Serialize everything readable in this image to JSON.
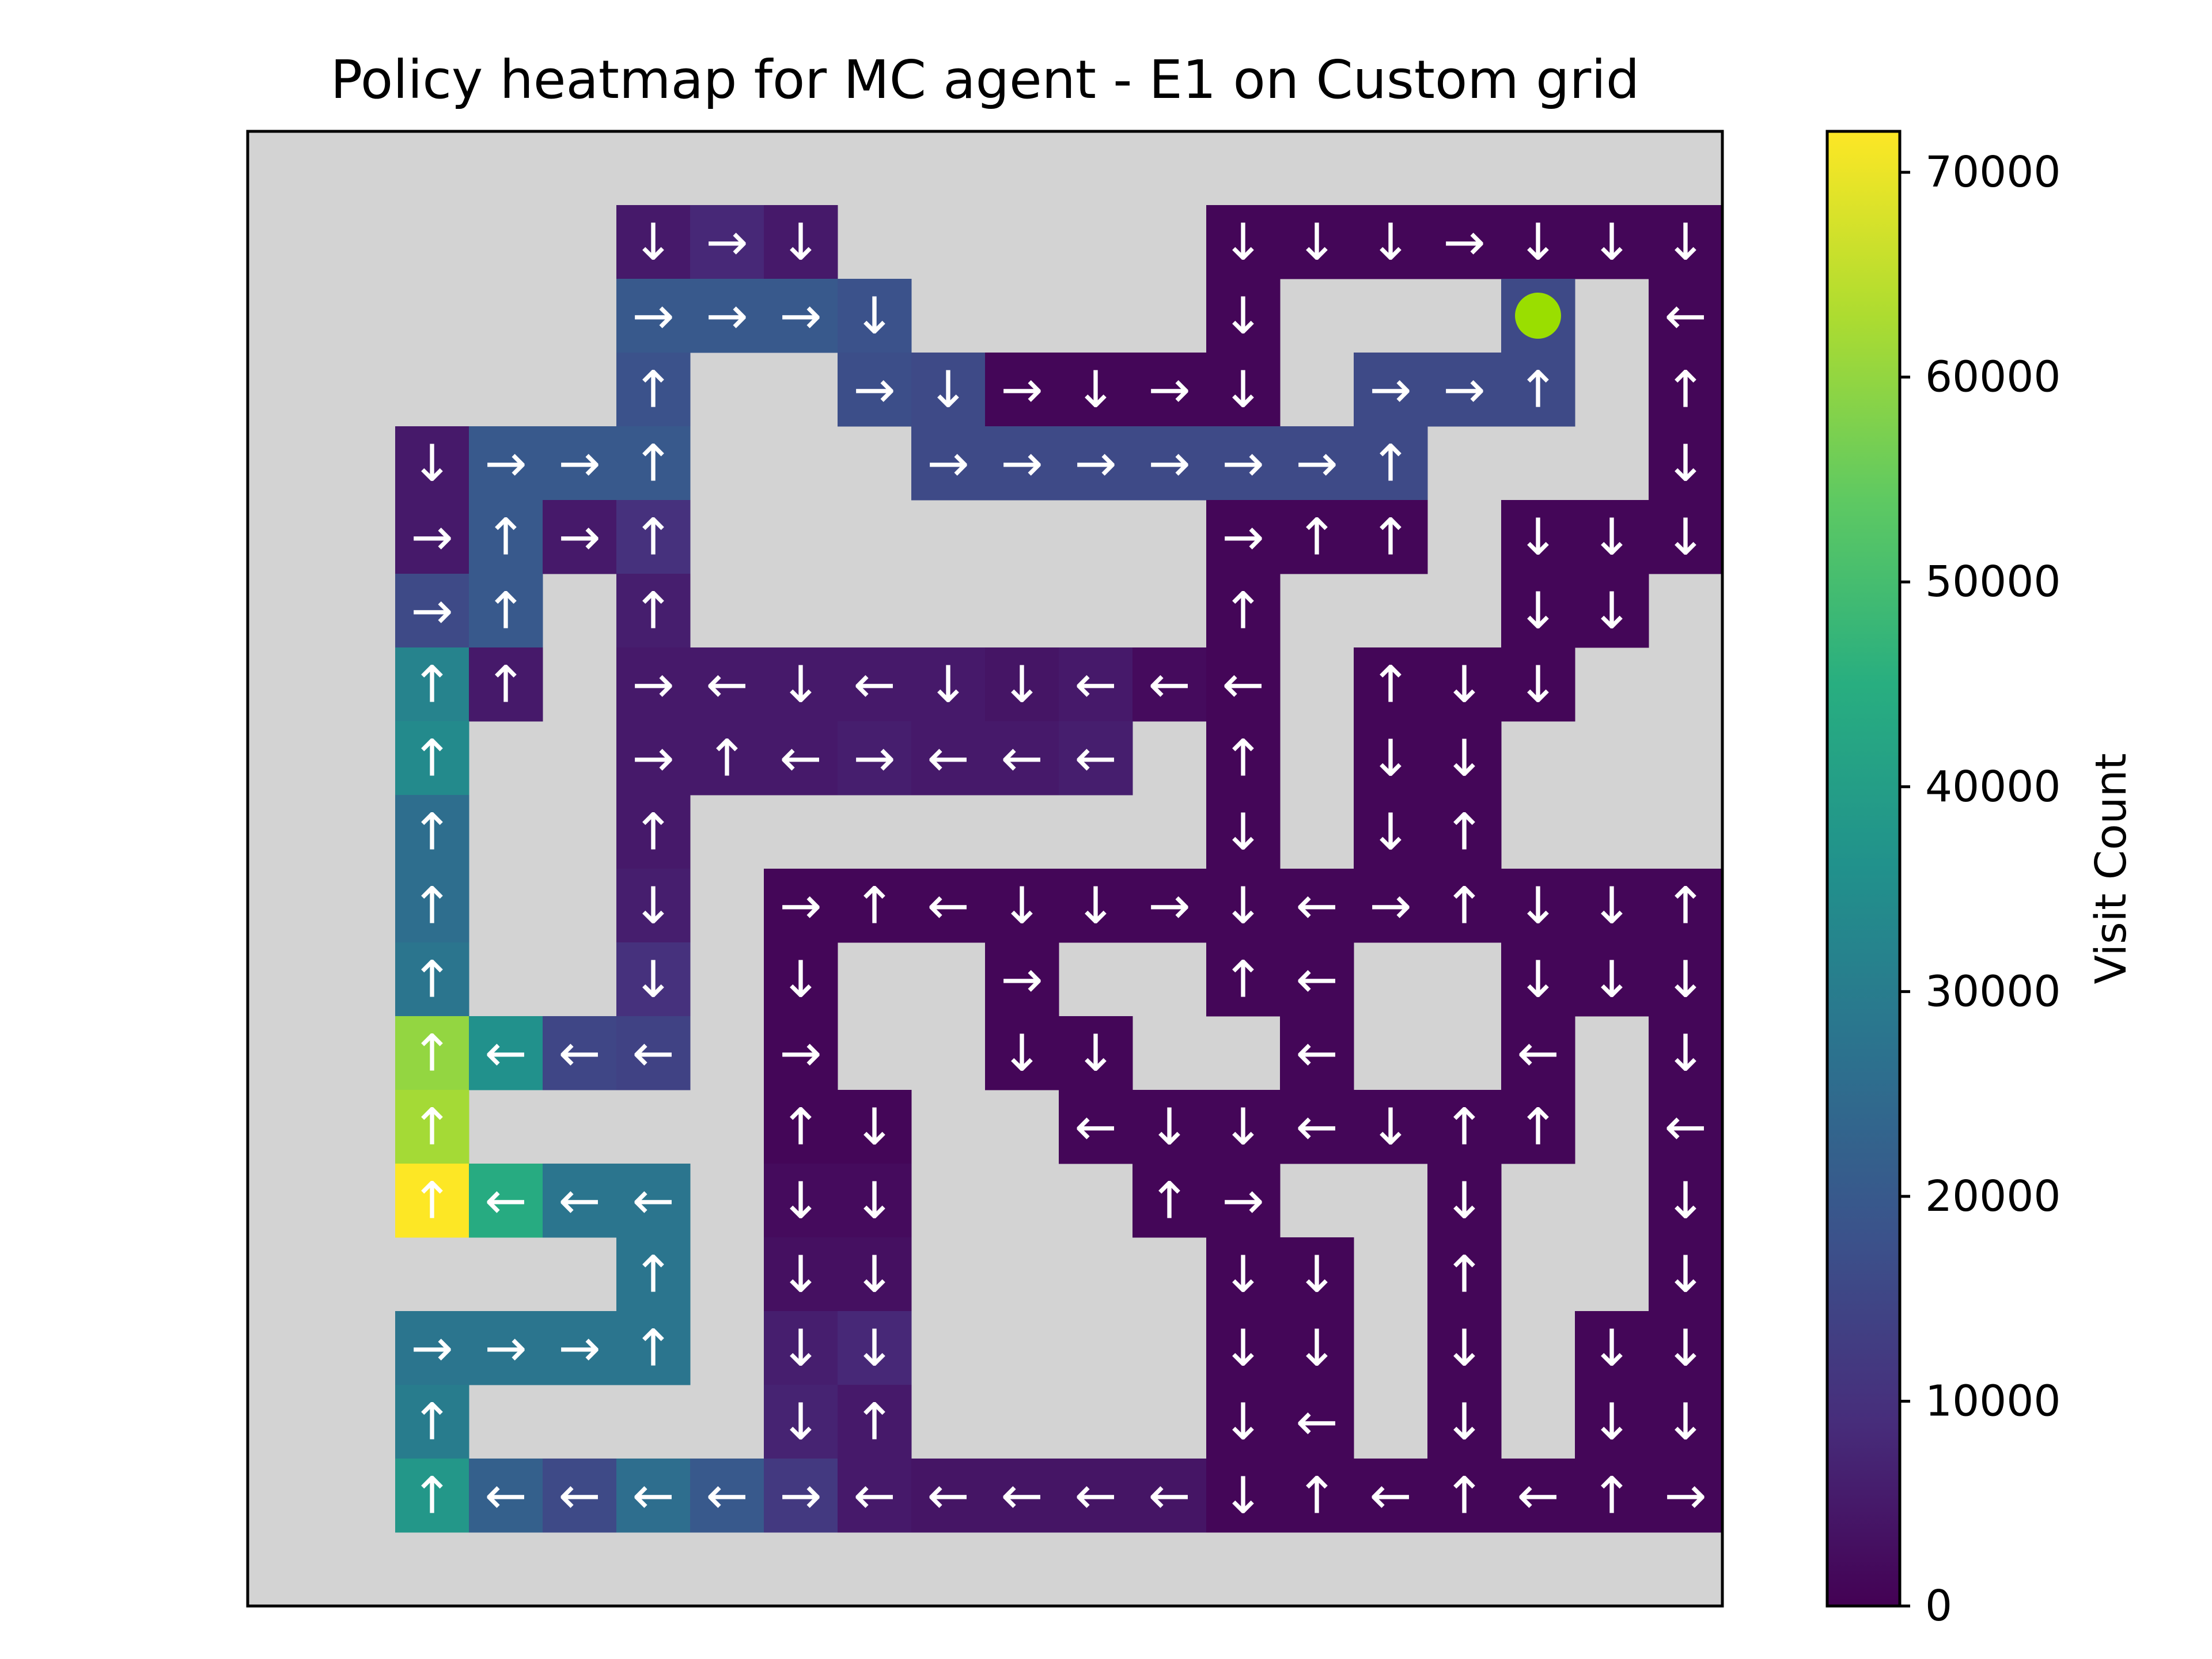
{
  "chart_data": {
    "type": "heatmap",
    "title": "Policy heatmap for MC agent - E1 on Custom grid",
    "grid_rows": 20,
    "grid_cols": 20,
    "obstacle_color": "#d3d3d3",
    "agent_color": "#9ade00",
    "arrow_color": "#ffffff",
    "agent_cell": [
      2,
      17
    ],
    "colormap": "viridis",
    "colorbar": {
      "label": "Visit Count",
      "range": [
        0,
        72000
      ],
      "ticks": [
        0,
        10000,
        20000,
        30000,
        40000,
        50000,
        60000,
        70000
      ],
      "tick_labels": [
        "0",
        "10000",
        "20000",
        "30000",
        "40000",
        "50000",
        "60000",
        "70000"
      ]
    },
    "cells": [
      {
        "r": 1,
        "c": 5,
        "dir": "↓",
        "v": 5000
      },
      {
        "r": 1,
        "c": 6,
        "dir": "→",
        "v": 8000
      },
      {
        "r": 1,
        "c": 7,
        "dir": "↓",
        "v": 5000
      },
      {
        "r": 1,
        "c": 13,
        "dir": "↓",
        "v": 1000
      },
      {
        "r": 1,
        "c": 14,
        "dir": "↓",
        "v": 1000
      },
      {
        "r": 1,
        "c": 15,
        "dir": "↓",
        "v": 1000
      },
      {
        "r": 1,
        "c": 16,
        "dir": "→",
        "v": 1000
      },
      {
        "r": 1,
        "c": 17,
        "dir": "↓",
        "v": 1000
      },
      {
        "r": 1,
        "c": 18,
        "dir": "↓",
        "v": 1000
      },
      {
        "r": 1,
        "c": 19,
        "dir": "↓",
        "v": 1000
      },
      {
        "r": 2,
        "c": 5,
        "dir": "→",
        "v": 20000
      },
      {
        "r": 2,
        "c": 6,
        "dir": "→",
        "v": 20000
      },
      {
        "r": 2,
        "c": 7,
        "dir": "→",
        "v": 20000
      },
      {
        "r": 2,
        "c": 8,
        "dir": "↓",
        "v": 18000
      },
      {
        "r": 2,
        "c": 13,
        "dir": "↓",
        "v": 1000
      },
      {
        "r": 2,
        "c": 17,
        "dir": "→",
        "v": 16000
      },
      {
        "r": 2,
        "c": 19,
        "dir": "←",
        "v": 1000
      },
      {
        "r": 3,
        "c": 5,
        "dir": "↑",
        "v": 18000
      },
      {
        "r": 3,
        "c": 8,
        "dir": "→",
        "v": 17000
      },
      {
        "r": 3,
        "c": 9,
        "dir": "↓",
        "v": 16000
      },
      {
        "r": 3,
        "c": 10,
        "dir": "→",
        "v": 1000
      },
      {
        "r": 3,
        "c": 11,
        "dir": "↓",
        "v": 1000
      },
      {
        "r": 3,
        "c": 12,
        "dir": "→",
        "v": 1000
      },
      {
        "r": 3,
        "c": 13,
        "dir": "↓",
        "v": 1000
      },
      {
        "r": 3,
        "c": 15,
        "dir": "→",
        "v": 16000
      },
      {
        "r": 3,
        "c": 16,
        "dir": "→",
        "v": 16000
      },
      {
        "r": 3,
        "c": 17,
        "dir": "↑",
        "v": 16000
      },
      {
        "r": 3,
        "c": 19,
        "dir": "↑",
        "v": 1000
      },
      {
        "r": 4,
        "c": 2,
        "dir": "↓",
        "v": 5000
      },
      {
        "r": 4,
        "c": 3,
        "dir": "→",
        "v": 20000
      },
      {
        "r": 4,
        "c": 4,
        "dir": "→",
        "v": 20000
      },
      {
        "r": 4,
        "c": 5,
        "dir": "↑",
        "v": 20000
      },
      {
        "r": 4,
        "c": 9,
        "dir": "→",
        "v": 16000
      },
      {
        "r": 4,
        "c": 10,
        "dir": "→",
        "v": 16000
      },
      {
        "r": 4,
        "c": 11,
        "dir": "→",
        "v": 16000
      },
      {
        "r": 4,
        "c": 12,
        "dir": "→",
        "v": 16000
      },
      {
        "r": 4,
        "c": 13,
        "dir": "→",
        "v": 16000
      },
      {
        "r": 4,
        "c": 14,
        "dir": "→",
        "v": 16000
      },
      {
        "r": 4,
        "c": 15,
        "dir": "↑",
        "v": 16000
      },
      {
        "r": 4,
        "c": 19,
        "dir": "↓",
        "v": 1000
      },
      {
        "r": 5,
        "c": 2,
        "dir": "→",
        "v": 5000
      },
      {
        "r": 5,
        "c": 3,
        "dir": "↑",
        "v": 20000
      },
      {
        "r": 5,
        "c": 4,
        "dir": "→",
        "v": 5000
      },
      {
        "r": 5,
        "c": 5,
        "dir": "↑",
        "v": 10000
      },
      {
        "r": 5,
        "c": 13,
        "dir": "→",
        "v": 1000
      },
      {
        "r": 5,
        "c": 14,
        "dir": "↑",
        "v": 1000
      },
      {
        "r": 5,
        "c": 15,
        "dir": "↑",
        "v": 1000
      },
      {
        "r": 5,
        "c": 17,
        "dir": "↓",
        "v": 1000
      },
      {
        "r": 5,
        "c": 18,
        "dir": "↓",
        "v": 1000
      },
      {
        "r": 5,
        "c": 19,
        "dir": "↓",
        "v": 1000
      },
      {
        "r": 6,
        "c": 2,
        "dir": "→",
        "v": 16000
      },
      {
        "r": 6,
        "c": 3,
        "dir": "↑",
        "v": 20000
      },
      {
        "r": 6,
        "c": 5,
        "dir": "↑",
        "v": 6000
      },
      {
        "r": 6,
        "c": 13,
        "dir": "↑",
        "v": 1000
      },
      {
        "r": 6,
        "c": 17,
        "dir": "↓",
        "v": 1000
      },
      {
        "r": 6,
        "c": 18,
        "dir": "↓",
        "v": 1000
      },
      {
        "r": 7,
        "c": 2,
        "dir": "↑",
        "v": 32000
      },
      {
        "r": 7,
        "c": 3,
        "dir": "↑",
        "v": 5000
      },
      {
        "r": 7,
        "c": 5,
        "dir": "→",
        "v": 5000
      },
      {
        "r": 7,
        "c": 6,
        "dir": "←",
        "v": 5000
      },
      {
        "r": 7,
        "c": 7,
        "dir": "↓",
        "v": 5000
      },
      {
        "r": 7,
        "c": 8,
        "dir": "←",
        "v": 5000
      },
      {
        "r": 7,
        "c": 9,
        "dir": "↓",
        "v": 5000
      },
      {
        "r": 7,
        "c": 10,
        "dir": "↓",
        "v": 4000
      },
      {
        "r": 7,
        "c": 11,
        "dir": "←",
        "v": 5000
      },
      {
        "r": 7,
        "c": 12,
        "dir": "←",
        "v": 2000
      },
      {
        "r": 7,
        "c": 13,
        "dir": "←",
        "v": 1000
      },
      {
        "r": 7,
        "c": 15,
        "dir": "↑",
        "v": 1000
      },
      {
        "r": 7,
        "c": 16,
        "dir": "↓",
        "v": 1000
      },
      {
        "r": 7,
        "c": 17,
        "dir": "↓",
        "v": 1000
      },
      {
        "r": 8,
        "c": 2,
        "dir": "↑",
        "v": 34000
      },
      {
        "r": 8,
        "c": 5,
        "dir": "→",
        "v": 5000
      },
      {
        "r": 8,
        "c": 6,
        "dir": "↑",
        "v": 5000
      },
      {
        "r": 8,
        "c": 7,
        "dir": "←",
        "v": 5000
      },
      {
        "r": 8,
        "c": 8,
        "dir": "→",
        "v": 6000
      },
      {
        "r": 8,
        "c": 9,
        "dir": "←",
        "v": 5000
      },
      {
        "r": 8,
        "c": 10,
        "dir": "←",
        "v": 5000
      },
      {
        "r": 8,
        "c": 11,
        "dir": "←",
        "v": 6000
      },
      {
        "r": 8,
        "c": 13,
        "dir": "↑",
        "v": 1000
      },
      {
        "r": 8,
        "c": 15,
        "dir": "↓",
        "v": 1000
      },
      {
        "r": 8,
        "c": 16,
        "dir": "↓",
        "v": 1000
      },
      {
        "r": 9,
        "c": 2,
        "dir": "↑",
        "v": 26000
      },
      {
        "r": 9,
        "c": 5,
        "dir": "↑",
        "v": 5000
      },
      {
        "r": 9,
        "c": 13,
        "dir": "↓",
        "v": 1000
      },
      {
        "r": 9,
        "c": 15,
        "dir": "↓",
        "v": 1000
      },
      {
        "r": 9,
        "c": 16,
        "dir": "↑",
        "v": 1000
      },
      {
        "r": 10,
        "c": 2,
        "dir": "↑",
        "v": 26000
      },
      {
        "r": 10,
        "c": 5,
        "dir": "↓",
        "v": 6000
      },
      {
        "r": 10,
        "c": 7,
        "dir": "→",
        "v": 1000
      },
      {
        "r": 10,
        "c": 8,
        "dir": "↑",
        "v": 1000
      },
      {
        "r": 10,
        "c": 9,
        "dir": "←",
        "v": 1000
      },
      {
        "r": 10,
        "c": 10,
        "dir": "↓",
        "v": 1000
      },
      {
        "r": 10,
        "c": 11,
        "dir": "↓",
        "v": 1000
      },
      {
        "r": 10,
        "c": 12,
        "dir": "→",
        "v": 1000
      },
      {
        "r": 10,
        "c": 13,
        "dir": "↓",
        "v": 1000
      },
      {
        "r": 10,
        "c": 14,
        "dir": "←",
        "v": 1000
      },
      {
        "r": 10,
        "c": 15,
        "dir": "→",
        "v": 1000
      },
      {
        "r": 10,
        "c": 16,
        "dir": "↑",
        "v": 1000
      },
      {
        "r": 10,
        "c": 17,
        "dir": "↓",
        "v": 1000
      },
      {
        "r": 10,
        "c": 18,
        "dir": "↓",
        "v": 1000
      },
      {
        "r": 10,
        "c": 19,
        "dir": "↑",
        "v": 1000
      },
      {
        "r": 11,
        "c": 2,
        "dir": "↑",
        "v": 28000
      },
      {
        "r": 11,
        "c": 5,
        "dir": "↓",
        "v": 10000
      },
      {
        "r": 11,
        "c": 7,
        "dir": "↓",
        "v": 1000
      },
      {
        "r": 11,
        "c": 10,
        "dir": "→",
        "v": 1000
      },
      {
        "r": 11,
        "c": 13,
        "dir": "↑",
        "v": 1000
      },
      {
        "r": 11,
        "c": 14,
        "dir": "←",
        "v": 1000
      },
      {
        "r": 11,
        "c": 17,
        "dir": "↓",
        "v": 1000
      },
      {
        "r": 11,
        "c": 18,
        "dir": "↓",
        "v": 1000
      },
      {
        "r": 11,
        "c": 19,
        "dir": "↓",
        "v": 1000
      },
      {
        "r": 12,
        "c": 2,
        "dir": "↑",
        "v": 60000
      },
      {
        "r": 12,
        "c": 3,
        "dir": "←",
        "v": 36000
      },
      {
        "r": 12,
        "c": 4,
        "dir": "←",
        "v": 15000
      },
      {
        "r": 12,
        "c": 5,
        "dir": "←",
        "v": 14000
      },
      {
        "r": 12,
        "c": 7,
        "dir": "→",
        "v": 1000
      },
      {
        "r": 12,
        "c": 10,
        "dir": "↓",
        "v": 1000
      },
      {
        "r": 12,
        "c": 11,
        "dir": "↓",
        "v": 1000
      },
      {
        "r": 12,
        "c": 14,
        "dir": "←",
        "v": 1000
      },
      {
        "r": 12,
        "c": 17,
        "dir": "←",
        "v": 1000
      },
      {
        "r": 12,
        "c": 19,
        "dir": "↓",
        "v": 1000
      },
      {
        "r": 13,
        "c": 2,
        "dir": "↑",
        "v": 62000
      },
      {
        "r": 13,
        "c": 7,
        "dir": "↑",
        "v": 1000
      },
      {
        "r": 13,
        "c": 8,
        "dir": "↓",
        "v": 1000
      },
      {
        "r": 13,
        "c": 11,
        "dir": "←",
        "v": 1000
      },
      {
        "r": 13,
        "c": 12,
        "dir": "↓",
        "v": 1000
      },
      {
        "r": 13,
        "c": 13,
        "dir": "↓",
        "v": 1000
      },
      {
        "r": 13,
        "c": 14,
        "dir": "←",
        "v": 1000
      },
      {
        "r": 13,
        "c": 15,
        "dir": "↓",
        "v": 1000
      },
      {
        "r": 13,
        "c": 16,
        "dir": "↑",
        "v": 1000
      },
      {
        "r": 13,
        "c": 17,
        "dir": "↑",
        "v": 1000
      },
      {
        "r": 13,
        "c": 19,
        "dir": "←",
        "v": 1000
      },
      {
        "r": 14,
        "c": 2,
        "dir": "↑",
        "v": 72000
      },
      {
        "r": 14,
        "c": 3,
        "dir": "←",
        "v": 44000
      },
      {
        "r": 14,
        "c": 4,
        "dir": "←",
        "v": 28000
      },
      {
        "r": 14,
        "c": 5,
        "dir": "←",
        "v": 28000
      },
      {
        "r": 14,
        "c": 7,
        "dir": "↓",
        "v": 2000
      },
      {
        "r": 14,
        "c": 8,
        "dir": "↓",
        "v": 2000
      },
      {
        "r": 14,
        "c": 12,
        "dir": "↑",
        "v": 1000
      },
      {
        "r": 14,
        "c": 13,
        "dir": "→",
        "v": 1000
      },
      {
        "r": 14,
        "c": 16,
        "dir": "↓",
        "v": 1000
      },
      {
        "r": 14,
        "c": 19,
        "dir": "↓",
        "v": 1000
      },
      {
        "r": 15,
        "c": 5,
        "dir": "↑",
        "v": 28000
      },
      {
        "r": 15,
        "c": 7,
        "dir": "↓",
        "v": 3000
      },
      {
        "r": 15,
        "c": 8,
        "dir": "↓",
        "v": 3000
      },
      {
        "r": 15,
        "c": 13,
        "dir": "↓",
        "v": 1000
      },
      {
        "r": 15,
        "c": 14,
        "dir": "↓",
        "v": 1000
      },
      {
        "r": 15,
        "c": 16,
        "dir": "↑",
        "v": 1000
      },
      {
        "r": 15,
        "c": 19,
        "dir": "↓",
        "v": 1000
      },
      {
        "r": 16,
        "c": 2,
        "dir": "→",
        "v": 28000
      },
      {
        "r": 16,
        "c": 3,
        "dir": "→",
        "v": 28000
      },
      {
        "r": 16,
        "c": 4,
        "dir": "→",
        "v": 28000
      },
      {
        "r": 16,
        "c": 5,
        "dir": "↑",
        "v": 28000
      },
      {
        "r": 16,
        "c": 7,
        "dir": "↓",
        "v": 6000
      },
      {
        "r": 16,
        "c": 8,
        "dir": "↓",
        "v": 8000
      },
      {
        "r": 16,
        "c": 13,
        "dir": "↓",
        "v": 1000
      },
      {
        "r": 16,
        "c": 14,
        "dir": "↓",
        "v": 1000
      },
      {
        "r": 16,
        "c": 16,
        "dir": "↓",
        "v": 1000
      },
      {
        "r": 16,
        "c": 18,
        "dir": "↓",
        "v": 1000
      },
      {
        "r": 16,
        "c": 19,
        "dir": "↓",
        "v": 1000
      },
      {
        "r": 17,
        "c": 2,
        "dir": "↑",
        "v": 30000
      },
      {
        "r": 17,
        "c": 7,
        "dir": "↓",
        "v": 7000
      },
      {
        "r": 17,
        "c": 8,
        "dir": "↑",
        "v": 5000
      },
      {
        "r": 17,
        "c": 13,
        "dir": "↓",
        "v": 1000
      },
      {
        "r": 17,
        "c": 14,
        "dir": "←",
        "v": 1000
      },
      {
        "r": 17,
        "c": 16,
        "dir": "↓",
        "v": 1000
      },
      {
        "r": 17,
        "c": 18,
        "dir": "↓",
        "v": 1000
      },
      {
        "r": 17,
        "c": 19,
        "dir": "↓",
        "v": 1000
      },
      {
        "r": 18,
        "c": 2,
        "dir": "↑",
        "v": 38000
      },
      {
        "r": 18,
        "c": 3,
        "dir": "←",
        "v": 22000
      },
      {
        "r": 18,
        "c": 4,
        "dir": "←",
        "v": 16000
      },
      {
        "r": 18,
        "c": 5,
        "dir": "←",
        "v": 26000
      },
      {
        "r": 18,
        "c": 6,
        "dir": "←",
        "v": 20000
      },
      {
        "r": 18,
        "c": 7,
        "dir": "→",
        "v": 12000
      },
      {
        "r": 18,
        "c": 8,
        "dir": "←",
        "v": 5000
      },
      {
        "r": 18,
        "c": 9,
        "dir": "←",
        "v": 4000
      },
      {
        "r": 18,
        "c": 10,
        "dir": "←",
        "v": 4000
      },
      {
        "r": 18,
        "c": 11,
        "dir": "←",
        "v": 4000
      },
      {
        "r": 18,
        "c": 12,
        "dir": "←",
        "v": 4000
      },
      {
        "r": 18,
        "c": 13,
        "dir": "↓",
        "v": 1000
      },
      {
        "r": 18,
        "c": 14,
        "dir": "↑",
        "v": 1000
      },
      {
        "r": 18,
        "c": 15,
        "dir": "←",
        "v": 1000
      },
      {
        "r": 18,
        "c": 16,
        "dir": "↑",
        "v": 1000
      },
      {
        "r": 18,
        "c": 17,
        "dir": "←",
        "v": 1000
      },
      {
        "r": 18,
        "c": 18,
        "dir": "↑",
        "v": 1000
      },
      {
        "r": 18,
        "c": 19,
        "dir": "→",
        "v": 1000
      }
    ]
  }
}
